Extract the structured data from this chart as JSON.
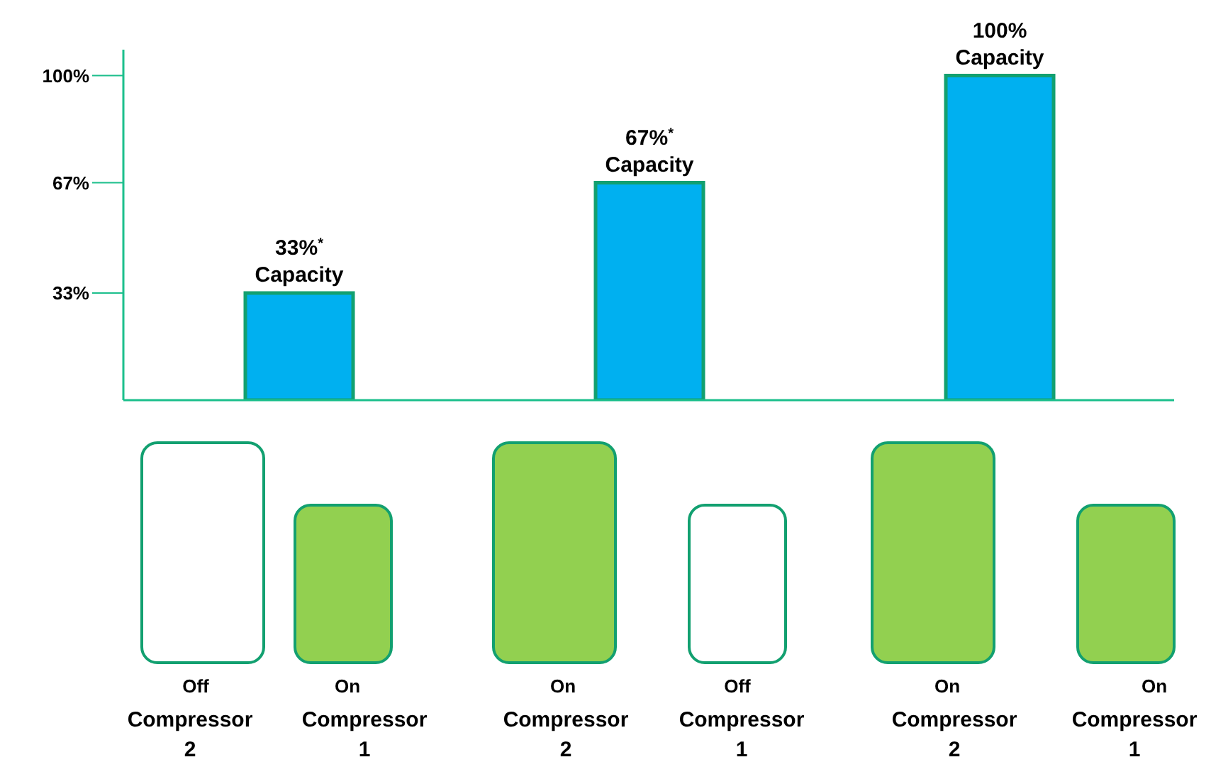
{
  "chart_data": {
    "type": "bar",
    "categories": [
      null,
      null,
      null
    ],
    "values": [
      33,
      67,
      100
    ],
    "color": "#00b0f0",
    "value_labels": [
      "33%$^{*}$\nCapacity",
      "67%$^{*}$\nCapacity",
      "100%\nCapacity"
    ],
    "ylim": [
      0,
      108
    ],
    "yticks": [
      {
        "value": 33,
        "label": "33%"
      },
      {
        "value": 67,
        "label": "67%"
      },
      {
        "value": 100,
        "label": "100%"
      }
    ],
    "grid": false,
    "legend": false,
    "annotations": [
      "Off",
      "Compressor\n2",
      "On",
      "Compressor\n1",
      "On",
      "Compressor\n2",
      "Off",
      "Compressor\n1",
      "On",
      "Compressor\n2",
      "On",
      "Compressor\n1"
    ]
  }
}
